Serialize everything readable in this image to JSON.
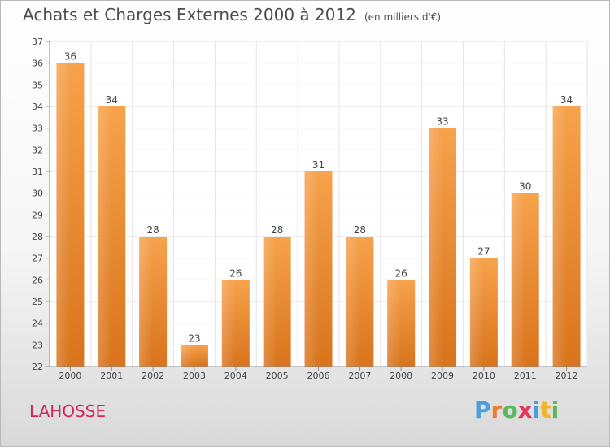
{
  "header": {
    "title": "Achats et Charges Externes 2000 à 2012",
    "subtitle": "(en milliers d'€)"
  },
  "footer": {
    "commune": "LAHOSSE",
    "logo_letters": [
      "P",
      "r",
      "o",
      "x",
      "i",
      "t",
      "i"
    ],
    "logo_colors": [
      "#4a9fd8",
      "#f07d2e",
      "#5cb85c",
      "#e2365e",
      "#4a9fd8",
      "#f0b52e",
      "#5cb85c"
    ]
  },
  "chart_data": {
    "type": "bar",
    "categories": [
      "2000",
      "2001",
      "2002",
      "2003",
      "2004",
      "2005",
      "2006",
      "2007",
      "2008",
      "2009",
      "2010",
      "2011",
      "2012"
    ],
    "values": [
      36,
      34,
      28,
      23,
      26,
      28,
      31,
      28,
      26,
      33,
      27,
      30,
      34
    ],
    "title": "Achats et Charges Externes 2000 à 2012",
    "ylim": [
      22,
      37
    ],
    "yticks": [
      22,
      23,
      24,
      25,
      26,
      27,
      28,
      29,
      30,
      31,
      32,
      33,
      34,
      35,
      36,
      37
    ],
    "grid": true,
    "bar_color": "#f0943a"
  }
}
